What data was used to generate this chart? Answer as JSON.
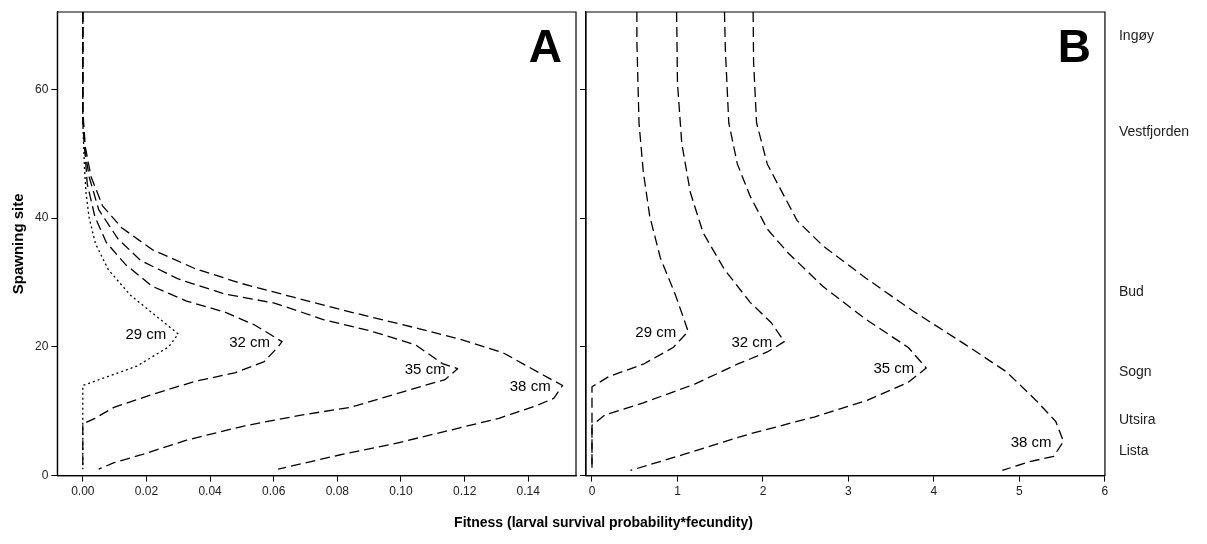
{
  "chart_data": [
    {
      "type": "line",
      "ylabel": "Spawning site",
      "xlabel": "Fitness (larval survival probability*fecundity)",
      "annotations": [
        "A"
      ],
      "xlim": [
        -0.008,
        0.155
      ],
      "ylim": [
        0,
        72
      ],
      "xticks": [
        {
          "value": 0,
          "label": "0.00"
        },
        {
          "value": 0.02,
          "label": "0.02"
        },
        {
          "value": 0.04,
          "label": "0.04"
        },
        {
          "value": 0.06,
          "label": "0.06"
        },
        {
          "value": 0.08,
          "label": "0.08"
        },
        {
          "value": 0.1,
          "label": "0.10"
        },
        {
          "value": 0.12,
          "label": "0.12"
        },
        {
          "value": 0.14,
          "label": "0.14"
        }
      ],
      "yticks": [
        0,
        20,
        40,
        60
      ],
      "grid": false,
      "legend": false,
      "marker": "none",
      "series": [
        {
          "name": "29 cm",
          "color": "#000000",
          "line_style": "dotted",
          "x": [
            0,
            0,
            0.0005,
            0.001,
            0.002,
            0.004,
            0.008,
            0.015,
            0.025,
            0.03,
            0.027,
            0.017,
            0,
            0
          ],
          "values": [
            72,
            55,
            48,
            44,
            40,
            36,
            32,
            28,
            24,
            22,
            20,
            17,
            14,
            1
          ]
        },
        {
          "name": "32 cm",
          "color": "#000000",
          "line_style": "dashed",
          "x": [
            0,
            0,
            0.0014,
            0.0038,
            0.0074,
            0.0134,
            0.0218,
            0.0326,
            0.0446,
            0.054,
            0.0626,
            0.0614,
            0.057,
            0.048,
            0.035,
            0.0218,
            0.0098,
            0.0038,
            0,
            0
          ],
          "values": [
            72,
            55,
            45.3,
            40.2,
            36.2,
            32.8,
            29.4,
            27.1,
            25.4,
            23.4,
            20.8,
            20,
            17.7,
            16,
            14.6,
            12.6,
            10.6,
            8.9,
            8,
            1
          ]
        },
        {
          "name": "35 cm",
          "color": "#000000",
          "line_style": "dashed",
          "x": [
            0,
            0,
            0.0005,
            0.002,
            0.005,
            0.011,
            0.0182,
            0.0302,
            0.0446,
            0.0602,
            0.0758,
            0.0902,
            0.1046,
            0.113,
            0.1178,
            0.1138,
            0.0998,
            0.0842,
            0.0686,
            0.0506,
            0.0326,
            0.0182,
            0.0098,
            0.005
          ],
          "values": [
            72,
            56.7,
            51,
            46.4,
            41.3,
            36.8,
            33.4,
            30.5,
            28.2,
            26.8,
            24.2,
            22.5,
            20.3,
            17.4,
            16.6,
            14.9,
            12.9,
            10.6,
            9.4,
            7.7,
            5.5,
            3.2,
            2,
            1
          ]
        },
        {
          "name": "38 cm",
          "color": "#000000",
          "line_style": "dashed",
          "x": [
            0,
            0,
            0.0008,
            0.0026,
            0.0062,
            0.0122,
            0.0218,
            0.035,
            0.0494,
            0.0662,
            0.0842,
            0.1058,
            0.119,
            0.132,
            0.1466,
            0.1508,
            0.148,
            0.1428,
            0.1308,
            0.1142,
            0.0974,
            0.0806,
            0.0614
          ],
          "values": [
            72,
            56.7,
            51,
            46.4,
            41.9,
            38.5,
            35.1,
            32.2,
            29.9,
            27.7,
            25.4,
            22.8,
            21.1,
            19.1,
            15.1,
            14,
            12,
            10.9,
            8.9,
            6.9,
            4.9,
            3.2,
            1
          ]
        }
      ]
    },
    {
      "type": "line",
      "annotations": [
        "B"
      ],
      "xlim": [
        -0.07,
        6
      ],
      "ylim": [
        0,
        72
      ],
      "xticks": [
        0,
        1,
        2,
        3,
        4,
        5,
        6
      ],
      "yticks": [
        0,
        20,
        40,
        60
      ],
      "tick_labels": "x",
      "y2_categories": [
        null,
        "Ingøy",
        null,
        null,
        null,
        null,
        null,
        "Vestfjorden",
        null,
        null,
        null,
        null,
        null,
        null,
        null,
        null,
        null,
        "Bud",
        null,
        null,
        null,
        null,
        "Sogn",
        null,
        null,
        "Utsira",
        null,
        "Lista",
        null
      ],
      "grid": false,
      "legend": false,
      "marker": "none",
      "series": [
        {
          "name": "29 cm",
          "color": "#000000",
          "line_style": "dashed",
          "x": [
            0.525,
            0.525,
            0.55,
            0.6,
            0.675,
            0.8,
            0.975,
            1.125,
            0.95,
            0.6,
            0.2,
            0,
            0
          ],
          "values": [
            72,
            67.5,
            54.8,
            47.2,
            40.3,
            33.8,
            28.1,
            22.4,
            19.9,
            17.3,
            15.4,
            13.8,
            1
          ]
        },
        {
          "name": "32 cm",
          "color": "#000000",
          "line_style": "dashed",
          "x": [
            0.99,
            1,
            1.05,
            1.15,
            1.3,
            1.55,
            1.85,
            2.1,
            2.25,
            2.05,
            1.7,
            1.2,
            0.6,
            0.15,
            0,
            0
          ],
          "values": [
            72,
            61,
            51.6,
            44,
            37.7,
            32,
            26.9,
            23.7,
            20.8,
            19.2,
            17.3,
            14.2,
            11.3,
            9.4,
            7.8,
            1
          ]
        },
        {
          "name": "35 cm",
          "color": "#000000",
          "line_style": "dashed",
          "x": [
            1.55,
            1.56,
            1.6,
            1.7,
            1.85,
            2.05,
            2.3,
            2.7,
            3.2,
            3.7,
            3.91,
            3.7,
            3.2,
            2.6,
            1.85,
            1.1,
            0.45
          ],
          "values": [
            72,
            66.2,
            54.8,
            48.4,
            43.4,
            38.3,
            34.5,
            29.4,
            24.3,
            19.9,
            16.7,
            14.5,
            11.6,
            9.1,
            6.5,
            3.4,
            0.8
          ]
        },
        {
          "name": "38 cm",
          "color": "#000000",
          "line_style": "dashed",
          "x": [
            1.885,
            1.89,
            1.925,
            2.05,
            2.2,
            2.4,
            2.7,
            3.2,
            3.75,
            4.35,
            4.85,
            5.2,
            5.425,
            5.515,
            5.4,
            5.1,
            4.8
          ],
          "values": [
            72,
            64.3,
            54.8,
            48.4,
            44.6,
            39.6,
            35.7,
            30.7,
            25.6,
            20.5,
            16.1,
            11.6,
            8.4,
            5.3,
            3,
            2.1,
            0.8
          ]
        }
      ]
    }
  ]
}
